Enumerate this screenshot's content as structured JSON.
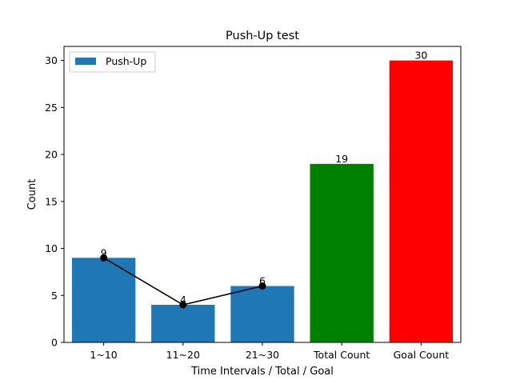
{
  "chart_data": {
    "type": "bar",
    "title": "Push-Up test",
    "xlabel": "Time Intervals / Total / Goal",
    "ylabel": "Count",
    "categories": [
      "1~10",
      "11~20",
      "21~30",
      "Total Count",
      "Goal Count"
    ],
    "values": [
      9,
      4,
      6,
      19,
      30
    ],
    "bar_colors": [
      "#1f77b4",
      "#1f77b4",
      "#1f77b4",
      "#008000",
      "#ff0000"
    ],
    "ylim": [
      0,
      31.5
    ],
    "yticks": [
      0,
      5,
      10,
      15,
      20,
      25,
      30
    ],
    "legend": {
      "position": "top-left",
      "entries": [
        {
          "label": "Push-Up",
          "color": "#1f77b4"
        }
      ]
    },
    "line_overlay": {
      "categories": [
        "1~10",
        "11~20",
        "21~30"
      ],
      "values": [
        9,
        4,
        6
      ],
      "color": "#000000",
      "marker": "circle"
    },
    "grid": false
  }
}
